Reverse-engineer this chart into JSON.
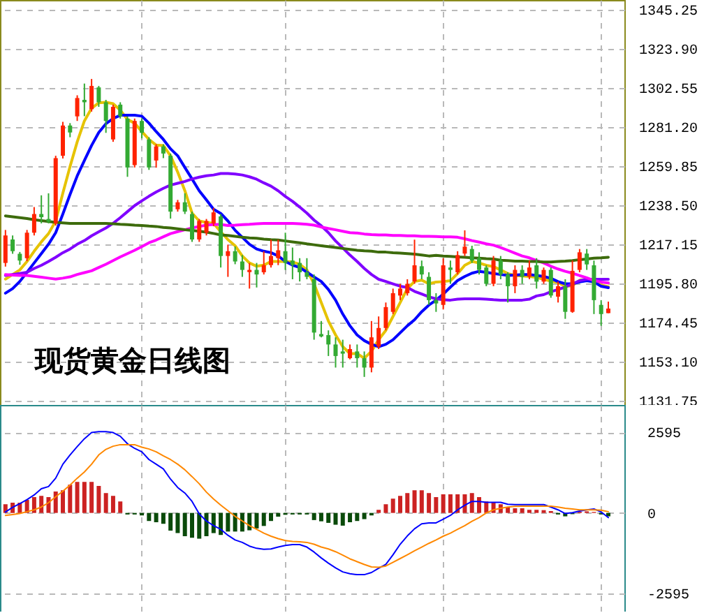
{
  "chart_data": [
    {
      "type": "candlestick",
      "title": "现货黄金日线图",
      "categories": [
        null,
        null,
        null,
        null,
        null,
        null,
        null,
        null,
        null,
        null,
        null,
        null,
        null,
        null,
        null,
        null,
        null,
        null,
        null,
        null,
        null,
        null,
        null,
        null,
        null,
        null,
        null,
        null,
        null,
        null,
        null,
        null,
        null,
        null,
        null,
        null,
        null,
        null,
        null,
        null,
        null,
        null,
        null,
        null,
        null,
        null,
        null,
        null,
        null,
        null,
        null,
        null,
        null,
        null,
        null,
        null,
        null,
        null,
        null,
        null,
        null,
        null,
        null,
        null,
        null,
        null,
        null,
        null,
        null,
        null,
        null,
        null,
        null,
        null,
        null,
        null,
        null,
        null,
        null,
        null,
        null,
        null,
        null,
        null,
        null
      ],
      "ohlc": [
        [
          1207,
          1225,
          1205,
          1222
        ],
        [
          1219.8,
          1222,
          1212,
          1213.4
        ],
        [
          1212,
          1213,
          1206,
          1208.3
        ],
        [
          1209.6,
          1225,
          1208,
          1223.5
        ],
        [
          1223.5,
          1237.5,
          1222,
          1233.7
        ],
        [
          1233.7,
          1243.9,
          1228.6,
          1232
        ],
        [
          1231,
          1245,
          1228.6,
          1229.5
        ],
        [
          1228.6,
          1265.5,
          1227.4,
          1264.2
        ],
        [
          1265.5,
          1284,
          1264,
          1282
        ],
        [
          1282,
          1283.3,
          1275.6,
          1278.2
        ],
        [
          1287,
          1298.5,
          1284.5,
          1297
        ],
        [
          1296,
          1304.9,
          1287.1,
          1294.7
        ],
        [
          1290.9,
          1307.4,
          1289.6,
          1303.6
        ],
        [
          1302.8,
          1303.6,
          1292.2,
          1294.7
        ],
        [
          1294.7,
          1296,
          1278,
          1284.5
        ],
        [
          1274.4,
          1293.4,
          1273.1,
          1292.2
        ],
        [
          1293.4,
          1294.7,
          1285.8,
          1287
        ],
        [
          1285.8,
          1287,
          1254,
          1259.1
        ],
        [
          1260.4,
          1285.8,
          1259.1,
          1284.5
        ],
        [
          1284.5,
          1286,
          1275,
          1278
        ],
        [
          1274.4,
          1275.6,
          1257.8,
          1259.1
        ],
        [
          1262.9,
          1271.8,
          1259,
          1270.6
        ],
        [
          1270.6,
          1271.8,
          1264.2,
          1266.7
        ],
        [
          1265.5,
          1266.7,
          1231.2,
          1235
        ],
        [
          1236.3,
          1241.4,
          1235,
          1240.1
        ],
        [
          1240.1,
          1245,
          1233.7,
          1235
        ],
        [
          1233.7,
          1235,
          1218.5,
          1219.8
        ],
        [
          1219.8,
          1231,
          1218.5,
          1229.9
        ],
        [
          1223.5,
          1231,
          1222,
          1229.9
        ],
        [
          1228.5,
          1237,
          1227,
          1234.6
        ],
        [
          1232.4,
          1233.7,
          1204.5,
          1210.8
        ],
        [
          1210.8,
          1217,
          1199.4,
          1213.4
        ],
        [
          1213.4,
          1216,
          1206.3,
          1207.8
        ],
        [
          1207.8,
          1211.3,
          1199.4,
          1203.2
        ],
        [
          1202,
          1207,
          1193,
          1203.2
        ],
        [
          1203.2,
          1207,
          1193.6,
          1200.7
        ],
        [
          1201.9,
          1213.4,
          1200.7,
          1205.8
        ],
        [
          1205.8,
          1219.7,
          1204.5,
          1210.8
        ],
        [
          1209.6,
          1219.7,
          1205.8,
          1213.9
        ],
        [
          1213.4,
          1223.5,
          1203.2,
          1207
        ],
        [
          1208.3,
          1215.4,
          1198.1,
          1205.8
        ],
        [
          1207,
          1209.6,
          1196.9,
          1201.9
        ],
        [
          1201.9,
          1209.6,
          1198.1,
          1199.4
        ],
        [
          1198.1,
          1200.7,
          1165.1,
          1169
        ],
        [
          1168.2,
          1175.3,
          1166.4,
          1166.9
        ],
        [
          1167.6,
          1170.2,
          1156.2,
          1162.5
        ],
        [
          1162.5,
          1166.4,
          1149.9,
          1156.2
        ],
        [
          1158.7,
          1165.1,
          1149.9,
          1157.5
        ],
        [
          1155,
          1162.5,
          1154.4,
          1160
        ],
        [
          1158.7,
          1162.5,
          1149.9,
          1155
        ],
        [
          1155,
          1158.7,
          1144.8,
          1149.9
        ],
        [
          1149.9,
          1175.3,
          1147.3,
          1166.4
        ],
        [
          1161.3,
          1177.8,
          1160,
          1171.5
        ],
        [
          1171.5,
          1185.4,
          1170.2,
          1182.9
        ],
        [
          1180.3,
          1193,
          1179.1,
          1190.5
        ],
        [
          1189.2,
          1195.6,
          1186.7,
          1193
        ],
        [
          1190.5,
          1198.1,
          1189.2,
          1195.6
        ],
        [
          1196.9,
          1219.7,
          1195.6,
          1205.7
        ],
        [
          1205.2,
          1208.3,
          1198.1,
          1200.7
        ],
        [
          1199.4,
          1201.9,
          1184.1,
          1186.7
        ],
        [
          1186.7,
          1190.5,
          1180.3,
          1184.9
        ],
        [
          1184.1,
          1209.6,
          1181.6,
          1205.7
        ],
        [
          1204.5,
          1208.3,
          1195.6,
          1203.2
        ],
        [
          1201.9,
          1213.4,
          1200.7,
          1211.3
        ],
        [
          1212.1,
          1224.8,
          1210.8,
          1215.9
        ],
        [
          1214.6,
          1216.4,
          1207,
          1208.3
        ],
        [
          1209.6,
          1212.8,
          1200.7,
          1203.2
        ],
        [
          1204.5,
          1205.7,
          1194.3,
          1195.6
        ],
        [
          1195.6,
          1210.8,
          1194.3,
          1208.3
        ],
        [
          1208.3,
          1210.8,
          1198.1,
          1200.7
        ],
        [
          1200.7,
          1201.9,
          1185.4,
          1194.3
        ],
        [
          1194.3,
          1205.7,
          1190.5,
          1203.2
        ],
        [
          1203.2,
          1205.7,
          1195.6,
          1199.4
        ],
        [
          1199.4,
          1208.3,
          1198.1,
          1204.5
        ],
        [
          1205.7,
          1209.6,
          1193,
          1196.8
        ],
        [
          1196.8,
          1204.5,
          1195.6,
          1203.2
        ],
        [
          1203.2,
          1204.5,
          1188,
          1189.2
        ],
        [
          1188.6,
          1196.8,
          1185.4,
          1194.3
        ],
        [
          1194.3,
          1198.1,
          1176.5,
          1180.3
        ],
        [
          1180.3,
          1208.3,
          1179.8,
          1202.7
        ],
        [
          1203.2,
          1214.6,
          1201.9,
          1212.8
        ],
        [
          1212.1,
          1214.6,
          1203.2,
          1206.2
        ],
        [
          1205.7,
          1208.3,
          1179.1,
          1186.7
        ],
        [
          1184.1,
          1186.7,
          1172.7,
          1179.1
        ],
        [
          1179.6,
          1185.9,
          1179.6,
          1182.1
        ]
      ],
      "colors": [
        "#ff2200",
        "#33aa33",
        "#33aa33",
        "#ff2200",
        "#ff2200",
        "#33aa33",
        "#33aa33",
        "#ff2200",
        "#ff2200",
        "#33aa33",
        "#ff2200",
        "#33aa33",
        "#ff2200",
        "#33aa33",
        "#33aa33",
        "#ff2200",
        "#33aa33",
        "#33aa33",
        "#ff2200",
        "#33aa33",
        "#33aa33",
        "#ff2200",
        "#33aa33",
        "#33aa33",
        "#ff2200",
        "#33aa33",
        "#33aa33",
        "#ff2200",
        "#ff2200",
        "#ff2200",
        "#33aa33",
        "#ff2200",
        "#33aa33",
        "#33aa33",
        "#ff2200",
        "#33aa33",
        "#ff2200",
        "#ff2200",
        "#ff2200",
        "#33aa33",
        "#33aa33",
        "#33aa33",
        "#33aa33",
        "#33aa33",
        "#33aa33",
        "#33aa33",
        "#33aa33",
        "#33aa33",
        "#ff2200",
        "#33aa33",
        "#33aa33",
        "#ff2200",
        "#ff2200",
        "#ff2200",
        "#ff2200",
        "#ff2200",
        "#ff2200",
        "#ff2200",
        "#33aa33",
        "#33aa33",
        "#33aa33",
        "#ff2200",
        "#33aa33",
        "#ff2200",
        "#ff2200",
        "#33aa33",
        "#33aa33",
        "#33aa33",
        "#ff2200",
        "#33aa33",
        "#33aa33",
        "#ff2200",
        "#33aa33",
        "#ff2200",
        "#33aa33",
        "#ff2200",
        "#33aa33",
        "#ff2200",
        "#33aa33",
        "#ff2200",
        "#ff2200",
        "#33aa33",
        "#33aa33",
        "#33aa33",
        "#ff2200"
      ],
      "ylim": [
        1129.5,
        1350.5
      ],
      "yticks": [
        1131.75,
        {
          "value": 1153.1,
          "label": "1153.10"
        },
        1174.45,
        {
          "value": 1195.8,
          "label": "1195.80"
        },
        1217.15,
        {
          "value": 1238.5,
          "label": "1238.50"
        },
        1259.85,
        {
          "value": 1281.2,
          "label": "1281.20"
        },
        1302.55,
        {
          "value": 1323.9,
          "label": "1323.90"
        },
        1345.25
      ],
      "grid": true,
      "tick_labels": "y",
      "series": [
        {
          "type": "line",
          "color": "#e6c300",
          "values": [
            1198.2,
            1200.7,
            1203.2,
            1207.8,
            1213.4,
            1218.5,
            1223,
            1229.9,
            1245.1,
            1259.6,
            1273.1,
            1284.5,
            1291.4,
            1294.4,
            1294.7,
            1293.9,
            1290.4,
            1285.3,
            1283.3,
            1278.7,
            1274.4,
            1271.3,
            1271.1,
            1265.5,
            1256.6,
            1246.4,
            1234.2,
            1229.9,
            1229.1,
            1228.6,
            1224,
            1219.7,
            1216.4,
            1210.8,
            1207,
            1205.2,
            1205.8,
            1207.8,
            1207.8,
            1207.8,
            1207.5,
            1206.3,
            1203.2,
            1195.6,
            1185.4,
            1175.3,
            1167.7,
            1161.3,
            1157.5,
            1157.5,
            1155,
            1158.8,
            1165.1,
            1170.2,
            1177.8,
            1185.4,
            1193,
            1196.9,
            1197.6,
            1195.6,
            1196.6,
            1196.8,
            1197.3,
            1201.2,
            1205.7,
            1207.8,
            1207,
            1205.7,
            1205,
            1203.2,
            1201.2,
            1200.2,
            1199.9,
            1199.6,
            1199.1,
            1198.1,
            1197.1,
            1196.3,
            1194.3,
            1194.6,
            1197.6,
            1198.1,
            1196.8,
            1195,
            1194
          ]
        },
        {
          "type": "line",
          "color": "#0000ff",
          "values": [
            1190.5,
            1193,
            1196.9,
            1201.9,
            1207,
            1212.1,
            1217.2,
            1223.5,
            1233.7,
            1244.4,
            1254.5,
            1262.9,
            1271.1,
            1278.2,
            1283,
            1285.8,
            1287.6,
            1287.6,
            1287.6,
            1287.1,
            1283.3,
            1278.7,
            1274.4,
            1269.3,
            1265.5,
            1259.1,
            1252.8,
            1246.4,
            1241.4,
            1236.3,
            1234,
            1229.9,
            1224.8,
            1221,
            1217.2,
            1214.6,
            1213.4,
            1212.6,
            1210.8,
            1207.8,
            1205.8,
            1204.5,
            1202,
            1199.4,
            1196.9,
            1192.5,
            1186.7,
            1179.1,
            1172.7,
            1167.7,
            1164.6,
            1162.6,
            1161.3,
            1162.6,
            1165.1,
            1168.9,
            1172.7,
            1176,
            1180.4,
            1184,
            1186.7,
            1190,
            1193.8,
            1197.4,
            1199.6,
            1201.4,
            1202.4,
            1201.9,
            1201.2,
            1200.7,
            1200.2,
            1200.4,
            1200.7,
            1200.7,
            1200.2,
            1199.6,
            1198.6,
            1196.8,
            1195.6,
            1195.6,
            1196.6,
            1197.3,
            1196.6,
            1194.3,
            1193.5
          ]
        },
        {
          "type": "line",
          "color": "#8000ff",
          "values": [
            1200.2,
            1200.7,
            1201.2,
            1201.9,
            1204,
            1205.7,
            1207.8,
            1210.1,
            1212.6,
            1214.6,
            1217.2,
            1219.2,
            1221.8,
            1224,
            1226.1,
            1228.6,
            1231.7,
            1235,
            1238.3,
            1240.9,
            1243.4,
            1245.7,
            1247.7,
            1249.5,
            1250.5,
            1251.5,
            1252.8,
            1253.8,
            1254.6,
            1255,
            1255.8,
            1255.8,
            1255.5,
            1255,
            1254,
            1252.7,
            1250.7,
            1248.9,
            1246.4,
            1243.3,
            1240.6,
            1237.5,
            1234.2,
            1230.4,
            1227.3,
            1223.5,
            1219,
            1215.2,
            1211.3,
            1207.8,
            1204,
            1200.7,
            1198.1,
            1196.9,
            1195.6,
            1194.3,
            1193.6,
            1191.5,
            1190,
            1188.5,
            1187.4,
            1186.9,
            1186.7,
            1187.2,
            1187.4,
            1187.4,
            1187.4,
            1187.2,
            1186.9,
            1186.7,
            1186.7,
            1186.7,
            1186.7,
            1187.2,
            1189,
            1189.7,
            1191.3,
            1192.5,
            1193.8,
            1195.6,
            1197.3,
            1198.1,
            1198.1,
            1198.1,
            1198.1
          ]
        },
        {
          "type": "line",
          "color": "#ff00ff",
          "values": [
            1200.7,
            1200.4,
            1200.2,
            1200.2,
            1199.7,
            1199.2,
            1198.7,
            1198.2,
            1198.7,
            1199.4,
            1200.7,
            1201.7,
            1202.7,
            1204.5,
            1206.3,
            1208.3,
            1210.3,
            1212.1,
            1213.9,
            1215.9,
            1218,
            1219.5,
            1221.3,
            1223,
            1224.1,
            1225.1,
            1226.1,
            1226.9,
            1227.6,
            1228,
            1228,
            1227.4,
            1227.6,
            1227.9,
            1228.1,
            1228.4,
            1228.6,
            1228.6,
            1228.6,
            1228.6,
            1228.6,
            1228.4,
            1228.1,
            1227.6,
            1226.6,
            1225.8,
            1225.1,
            1224.3,
            1223.5,
            1223.3,
            1222.8,
            1222.5,
            1222.3,
            1222.3,
            1222,
            1222,
            1221.8,
            1221.8,
            1221.5,
            1221.5,
            1221.4,
            1221.2,
            1221.2,
            1221,
            1220.2,
            1219.2,
            1218.4,
            1217.4,
            1216.7,
            1215.4,
            1213.9,
            1212.3,
            1210.8,
            1209.8,
            1208.3,
            1207,
            1205.2,
            1203.7,
            1202.4,
            1201.4,
            1200.1,
            1198.9,
            1197.4,
            1196.6,
            1196.1
          ]
        },
        {
          "type": "line",
          "color": "#3d6b0c",
          "values": [
            1232.7,
            1232.2,
            1231.7,
            1231.2,
            1230.6,
            1230.1,
            1229.6,
            1229.1,
            1228.9,
            1228.6,
            1228.6,
            1228.6,
            1228.6,
            1228.6,
            1228.6,
            1228.4,
            1228.1,
            1227.9,
            1227.6,
            1227.4,
            1227.1,
            1226.9,
            1226.4,
            1226.1,
            1225.6,
            1225.1,
            1224.8,
            1224.3,
            1223.8,
            1223.1,
            1222.3,
            1222,
            1221.5,
            1221,
            1220.7,
            1220.5,
            1220,
            1219.7,
            1219.5,
            1219,
            1218.5,
            1218,
            1217.4,
            1216.9,
            1216.4,
            1215.9,
            1215.4,
            1214.9,
            1214.4,
            1213.9,
            1213.6,
            1213.4,
            1212.9,
            1212.9,
            1212.6,
            1212.4,
            1212.1,
            1211.8,
            1211.3,
            1210.8,
            1211.1,
            1210.8,
            1210.6,
            1210.3,
            1210.1,
            1209.8,
            1209.6,
            1209.3,
            1209.1,
            1208.5,
            1208.3,
            1208,
            1208,
            1207.8,
            1207.8,
            1207.5,
            1207.5,
            1207.8,
            1208,
            1208.3,
            1208.8,
            1209.1,
            1209.6,
            1209.8,
            1210.1
          ]
        }
      ]
    },
    {
      "type": "bar",
      "categories": [
        null,
        null,
        null,
        null,
        null,
        null,
        null,
        null,
        null,
        null,
        null,
        null,
        null,
        null,
        null,
        null,
        null,
        null,
        null,
        null,
        null,
        null,
        null,
        null,
        null,
        null,
        null,
        null,
        null,
        null,
        null,
        null,
        null,
        null,
        null,
        null,
        null,
        null,
        null,
        null,
        null,
        null,
        null,
        null,
        null,
        null,
        null,
        null,
        null,
        null,
        null,
        null,
        null,
        null,
        null,
        null,
        null,
        null,
        null,
        null,
        null,
        null,
        null,
        null,
        null,
        null,
        null,
        null,
        null,
        null,
        null,
        null,
        null,
        null,
        null,
        null,
        null,
        null,
        null,
        null,
        null,
        null,
        null,
        null,
        null
      ],
      "ylim": [
        -3180,
        3480
      ],
      "yticks": [
        -2595,
        0,
        2595
      ],
      "grid": true,
      "tick_labels": "y",
      "series": [
        {
          "color": "#cc2222",
          "values": [
            280,
            330,
            330,
            420,
            510,
            550,
            510,
            690,
            730,
            910,
            1000,
            1000,
            1000,
            870,
            640,
            550,
            370,
            null,
            null,
            null,
            null,
            null,
            null,
            null,
            null,
            null,
            null,
            null,
            null,
            null,
            null,
            null,
            null,
            null,
            null,
            null,
            null,
            null,
            null,
            null,
            null,
            null,
            null,
            null,
            null,
            null,
            null,
            null,
            null,
            null,
            null,
            null,
            100,
            280,
            460,
            550,
            640,
            730,
            730,
            640,
            510,
            600,
            600,
            600,
            600,
            640,
            510,
            370,
            330,
            280,
            190,
            150,
            150,
            100,
            100,
            90,
            60,
            null,
            null,
            null,
            40,
            50,
            30,
            null,
            null
          ]
        },
        {
          "color": "#0a4a0a",
          "values": [
            null,
            null,
            null,
            null,
            null,
            null,
            null,
            null,
            null,
            null,
            null,
            null,
            null,
            null,
            null,
            null,
            null,
            -50,
            -50,
            -80,
            -260,
            -300,
            -350,
            -570,
            -650,
            -750,
            -800,
            -830,
            -750,
            -650,
            -710,
            -600,
            -600,
            -600,
            -560,
            -500,
            -420,
            -260,
            -120,
            -60,
            -50,
            -50,
            -50,
            -230,
            -270,
            -320,
            -380,
            -410,
            -300,
            -260,
            -200,
            -80,
            null,
            null,
            null,
            null,
            null,
            null,
            null,
            null,
            null,
            null,
            null,
            null,
            null,
            null,
            null,
            null,
            null,
            null,
            null,
            null,
            null,
            null,
            null,
            null,
            null,
            -50,
            -110,
            -40,
            null,
            null,
            null,
            -50,
            -110
          ]
        },
        {
          "type": "line",
          "color": "#0000ff",
          "values": [
            30,
            180,
            300,
            430,
            580,
            780,
            850,
            1120,
            1570,
            1870,
            2140,
            2390,
            2590,
            2620,
            2620,
            2590,
            2470,
            2230,
            2080,
            1970,
            1720,
            1570,
            1420,
            1090,
            820,
            640,
            370,
            -30,
            -260,
            -410,
            -530,
            -720,
            -870,
            -950,
            -1070,
            -1140,
            -1170,
            -1160,
            -1100,
            -1050,
            -1020,
            -1020,
            -1100,
            -1260,
            -1450,
            -1620,
            -1770,
            -1900,
            -1960,
            -1990,
            -1990,
            -1920,
            -1780,
            -1660,
            -1350,
            -1010,
            -740,
            -510,
            -350,
            -320,
            -320,
            -200,
            -80,
            100,
            250,
            370,
            370,
            340,
            340,
            340,
            280,
            270,
            270,
            270,
            270,
            270,
            190,
            100,
            -20,
            10,
            60,
            100,
            130,
            30,
            -150
          ]
        },
        {
          "type": "line",
          "color": "#ff8800",
          "values": [
            -80,
            -50,
            -20,
            40,
            100,
            190,
            330,
            520,
            700,
            900,
            1120,
            1320,
            1570,
            1870,
            2050,
            2150,
            2200,
            2200,
            2200,
            2120,
            2060,
            1970,
            1840,
            1720,
            1570,
            1390,
            1170,
            940,
            670,
            450,
            250,
            70,
            -110,
            -260,
            -410,
            -530,
            -650,
            -750,
            -830,
            -890,
            -920,
            -930,
            -950,
            -1010,
            -1100,
            -1160,
            -1250,
            -1360,
            -1480,
            -1570,
            -1660,
            -1740,
            -1750,
            -1710,
            -1590,
            -1470,
            -1350,
            -1220,
            -1100,
            -980,
            -870,
            -750,
            -650,
            -530,
            -410,
            -270,
            -150,
            0,
            100,
            150,
            190,
            210,
            220,
            220,
            220,
            220,
            220,
            190,
            150,
            130,
            100,
            100,
            100,
            90,
            40
          ]
        }
      ]
    }
  ]
}
